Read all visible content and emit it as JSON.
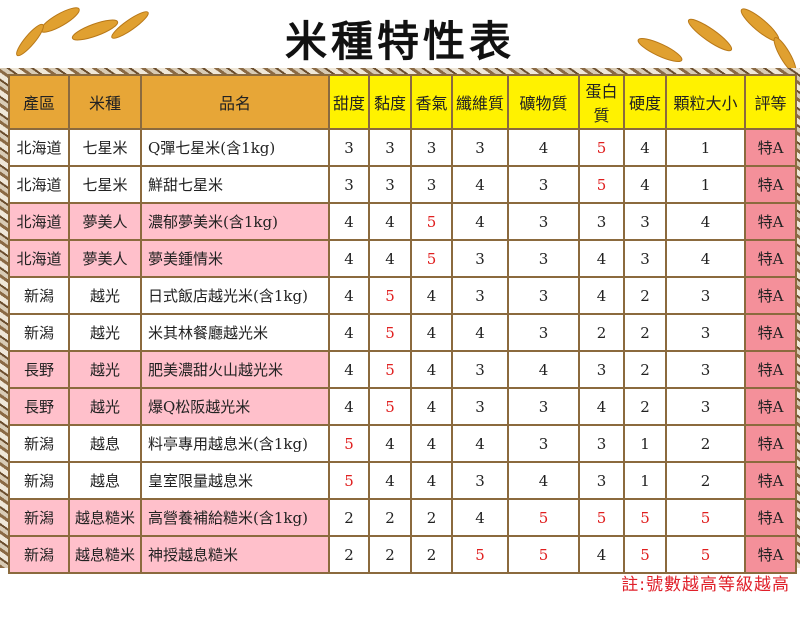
{
  "title": "米種特性表",
  "headers": [
    "產區",
    "米種",
    "品名",
    "甜度",
    "黏度",
    "香氣",
    "纖維質",
    "礦物質",
    "蛋白質",
    "硬度",
    "顆粒大小",
    "評等"
  ],
  "colors": {
    "header_left": "#e7a637",
    "header_right": "#fff200",
    "highlight_row": "#ffc0cb",
    "grade": "#f4909a",
    "max_value": "#e02020"
  },
  "rows": [
    {
      "region": "北海道",
      "variety": "七星米",
      "name": "Q彈七星米(含1kg)",
      "values": [
        3,
        3,
        3,
        3,
        4,
        5,
        4,
        1
      ],
      "grade": "特A",
      "highlight": false
    },
    {
      "region": "北海道",
      "variety": "七星米",
      "name": "鮮甜七星米",
      "values": [
        3,
        3,
        3,
        4,
        3,
        5,
        4,
        1
      ],
      "grade": "特A",
      "highlight": false
    },
    {
      "region": "北海道",
      "variety": "夢美人",
      "name": "濃郁夢美米(含1kg)",
      "values": [
        4,
        4,
        5,
        4,
        3,
        3,
        3,
        4
      ],
      "grade": "特A",
      "highlight": true
    },
    {
      "region": "北海道",
      "variety": "夢美人",
      "name": "夢美鍾情米",
      "values": [
        4,
        4,
        5,
        3,
        3,
        4,
        3,
        4
      ],
      "grade": "特A",
      "highlight": true
    },
    {
      "region": "新潟",
      "variety": "越光",
      "name": "日式飯店越光米(含1kg)",
      "values": [
        4,
        5,
        4,
        3,
        3,
        4,
        2,
        3
      ],
      "grade": "特A",
      "highlight": false
    },
    {
      "region": "新潟",
      "variety": "越光",
      "name": "米其林餐廳越光米",
      "values": [
        4,
        5,
        4,
        4,
        3,
        2,
        2,
        3
      ],
      "grade": "特A",
      "highlight": false
    },
    {
      "region": "長野",
      "variety": "越光",
      "name": "肥美濃甜火山越光米",
      "values": [
        4,
        5,
        4,
        3,
        4,
        3,
        2,
        3
      ],
      "grade": "特A",
      "highlight": true
    },
    {
      "region": "長野",
      "variety": "越光",
      "name": "爆Q松阪越光米",
      "values": [
        4,
        5,
        4,
        3,
        3,
        4,
        2,
        3
      ],
      "grade": "特A",
      "highlight": true
    },
    {
      "region": "新潟",
      "variety": "越息",
      "name": "料亭專用越息米(含1kg)",
      "values": [
        5,
        4,
        4,
        4,
        3,
        3,
        1,
        2
      ],
      "grade": "特A",
      "highlight": false
    },
    {
      "region": "新潟",
      "variety": "越息",
      "name": "皇室限量越息米",
      "values": [
        5,
        4,
        4,
        3,
        4,
        3,
        1,
        2
      ],
      "grade": "特A",
      "highlight": false
    },
    {
      "region": "新潟",
      "variety": "越息糙米",
      "name": "高營養補給糙米(含1kg)",
      "values": [
        2,
        2,
        2,
        4,
        5,
        5,
        5,
        5
      ],
      "grade": "特A",
      "highlight": true
    },
    {
      "region": "新潟",
      "variety": "越息糙米",
      "name": "神授越息糙米",
      "values": [
        2,
        2,
        2,
        5,
        5,
        4,
        5,
        5
      ],
      "grade": "特A",
      "highlight": true
    }
  ],
  "note": "註:號數越高等級越高"
}
